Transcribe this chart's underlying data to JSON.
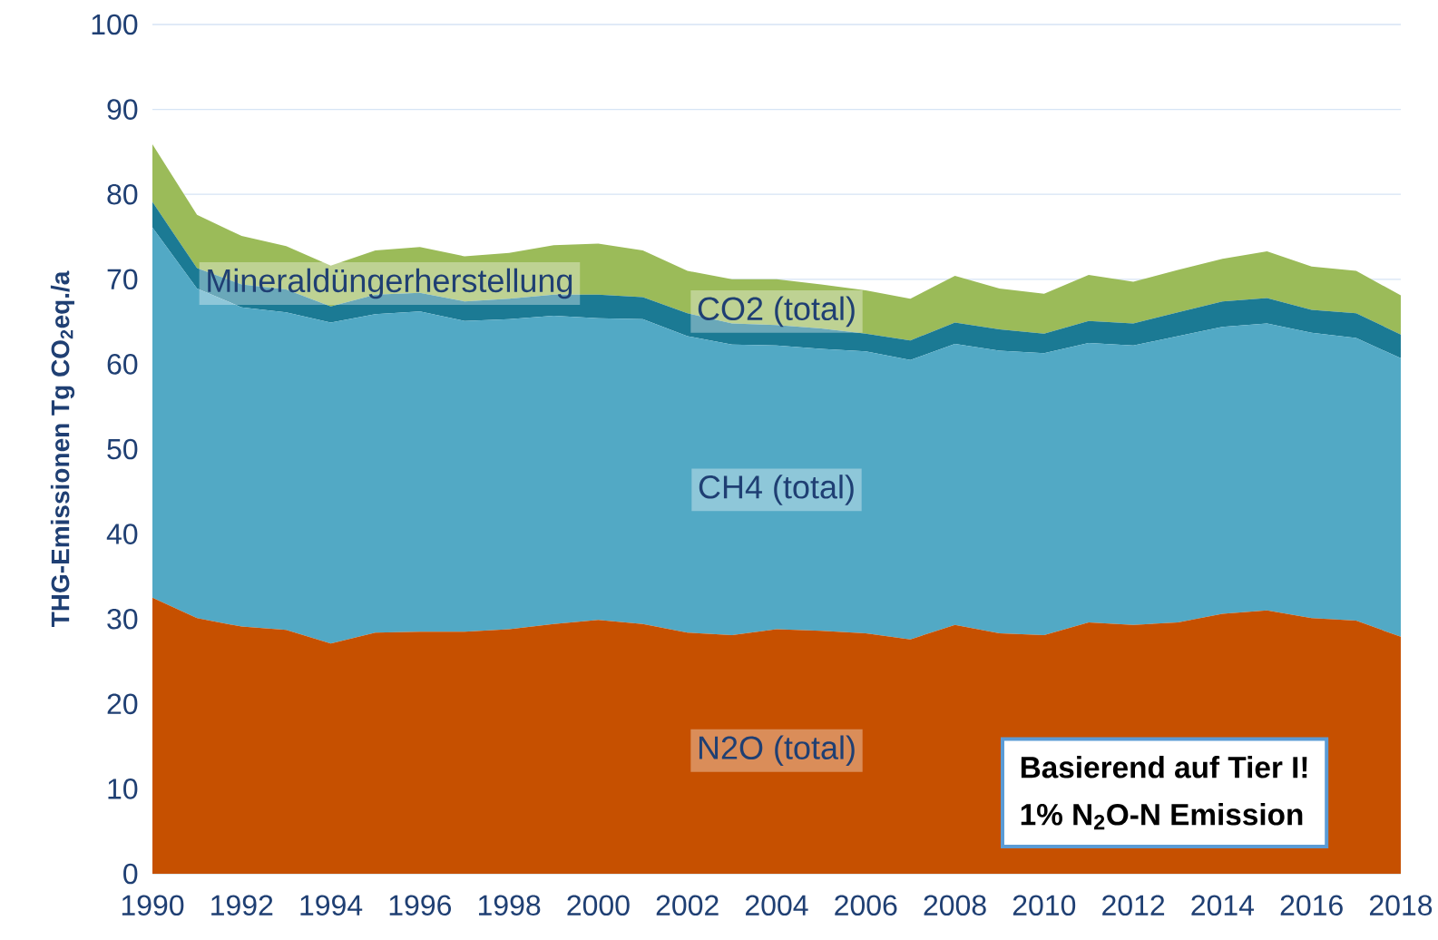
{
  "chart_data": {
    "type": "area",
    "stacked": true,
    "ylabel": "THG-Emissionen Tg CO$_{2}$eq./a",
    "x": [
      1990,
      1991,
      1992,
      1993,
      1994,
      1995,
      1996,
      1997,
      1998,
      1999,
      2000,
      2001,
      2002,
      2003,
      2004,
      2005,
      2006,
      2007,
      2008,
      2009,
      2010,
      2011,
      2012,
      2013,
      2014,
      2015,
      2016,
      2017,
      2018
    ],
    "series": [
      {
        "name": "N2O (total)",
        "color": "#c65000",
        "values": [
          32.5,
          30.1,
          29.1,
          28.7,
          27.1,
          28.4,
          28.5,
          28.5,
          28.8,
          29.4,
          29.9,
          29.4,
          28.4,
          28.1,
          28.8,
          28.6,
          28.3,
          27.6,
          29.3,
          28.3,
          28.1,
          29.6,
          29.3,
          29.6,
          30.6,
          31.0,
          30.1,
          29.8,
          27.9
        ]
      },
      {
        "name": "CH4 (total)",
        "color": "#52a9c5",
        "values": [
          43.6,
          38.8,
          37.6,
          37.4,
          37.8,
          37.5,
          37.7,
          36.6,
          36.5,
          36.3,
          35.5,
          35.9,
          34.9,
          34.2,
          33.4,
          33.2,
          33.2,
          32.9,
          33.1,
          33.3,
          33.2,
          32.9,
          32.9,
          33.7,
          33.8,
          33.8,
          33.6,
          33.3,
          32.8
        ]
      },
      {
        "name": "CO2 (total)",
        "color": "#1b7a94",
        "values": [
          3.0,
          2.4,
          2.7,
          2.7,
          1.9,
          2.3,
          2.2,
          2.3,
          2.4,
          2.5,
          2.8,
          2.6,
          2.7,
          2.5,
          2.4,
          2.4,
          2.1,
          2.3,
          2.5,
          2.5,
          2.3,
          2.6,
          2.6,
          2.8,
          3.0,
          3.0,
          2.7,
          2.9,
          2.8
        ]
      },
      {
        "name": "Mineraldüngerherstellung",
        "color": "#9bbb59",
        "values": [
          6.8,
          6.3,
          5.7,
          5.1,
          4.8,
          5.2,
          5.4,
          5.3,
          5.4,
          5.8,
          6.0,
          5.5,
          5.0,
          5.2,
          5.4,
          5.2,
          5.1,
          4.9,
          5.5,
          4.8,
          4.7,
          5.4,
          4.9,
          5.0,
          5.0,
          5.5,
          5.1,
          5.0,
          4.6
        ]
      }
    ],
    "xlim": [
      1990,
      2018
    ],
    "xticks": [
      1990,
      1992,
      1994,
      1996,
      1998,
      2000,
      2002,
      2004,
      2006,
      2008,
      2010,
      2012,
      2014,
      2016,
      2018
    ],
    "ylim": [
      0,
      100
    ],
    "yticks": [
      0,
      10,
      20,
      30,
      40,
      50,
      60,
      70,
      80,
      90,
      100
    ],
    "grid": "y",
    "legend": false,
    "annotations": [
      "Basierend auf Tier I!",
      "1% N$_{2}$O-N Emission"
    ]
  }
}
